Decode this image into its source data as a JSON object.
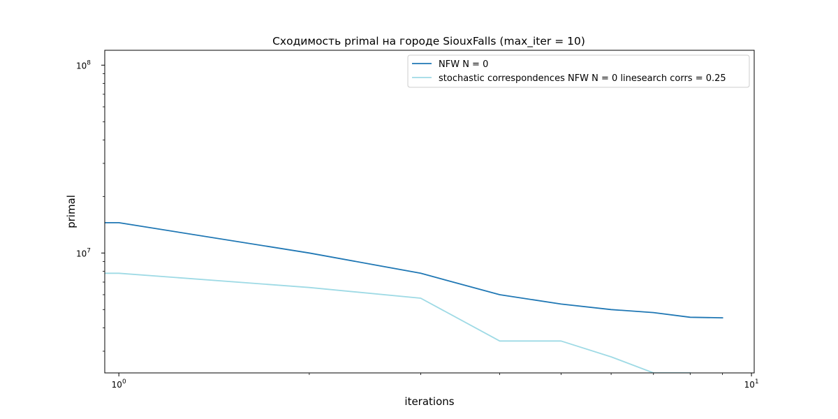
{
  "chart_data": {
    "type": "line",
    "title": "Сходимость primal на городе SiouxFalls  (max_iter = 10)",
    "xlabel": "iterations",
    "ylabel": "primal",
    "xscale": "log",
    "yscale": "log",
    "xlim": [
      0.95,
      10.1
    ],
    "ylim": [
      2300000,
      120000000
    ],
    "xticks": [
      {
        "value": 1,
        "base": "10",
        "exp": "0"
      },
      {
        "value": 10,
        "base": "10",
        "exp": "1"
      }
    ],
    "yticks": [
      {
        "value": 10000000,
        "base": "10",
        "exp": "7"
      },
      {
        "value": 100000000,
        "base": "10",
        "exp": "8"
      }
    ],
    "grid": false,
    "legend_position": "upper right",
    "series": [
      {
        "name": "NFW N = 0",
        "color": "#1f77b4",
        "x": [
          0.9,
          1,
          2,
          3,
          4,
          5,
          6,
          7,
          8,
          9
        ],
        "y": [
          14500000,
          14500000,
          10000000,
          7800000,
          6000000,
          5350000,
          5000000,
          4820000,
          4550000,
          4520000
        ]
      },
      {
        "name": "stochastic correspondences NFW N = 0 linesearch corrs = 0.25",
        "color": "#9edae5",
        "x": [
          0.9,
          1,
          2,
          3,
          4,
          5,
          6,
          7,
          8
        ],
        "y": [
          7800000,
          7800000,
          6550000,
          5750000,
          3400000,
          3400000,
          2800000,
          2300000,
          2300000
        ]
      }
    ]
  }
}
